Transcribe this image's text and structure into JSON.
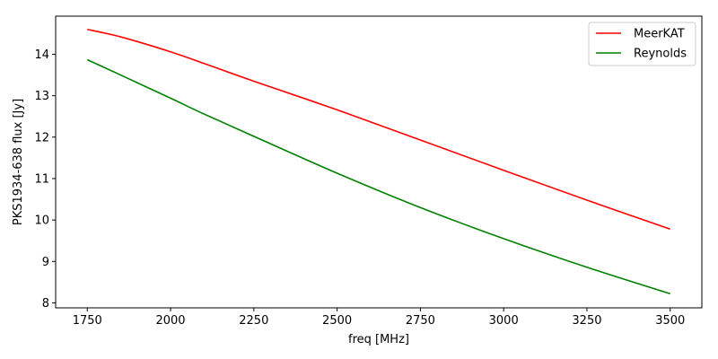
{
  "chart_data": {
    "type": "line",
    "title": "",
    "xlabel": "freq [MHz]",
    "ylabel": "PKS1934-638 flux [Jy]",
    "xlim": [
      1655,
      3595
    ],
    "ylim": [
      7.88,
      14.92
    ],
    "xticks": [
      1750,
      2000,
      2250,
      2500,
      2750,
      3000,
      3250,
      3500
    ],
    "yticks": [
      8,
      9,
      10,
      11,
      12,
      13,
      14
    ],
    "grid": false,
    "legend_position": "top-right",
    "series": [
      {
        "name": "MeerKAT",
        "color": "#ff0000",
        "x": [
          1750,
          1850,
          2000,
          2100,
          2250,
          2500,
          2750,
          3000,
          3250,
          3500
        ],
        "y": [
          14.6,
          14.42,
          14.06,
          13.78,
          13.35,
          12.66,
          11.93,
          11.2,
          10.48,
          9.78
        ]
      },
      {
        "name": "Reynolds",
        "color": "#008000",
        "x": [
          1750,
          1850,
          2000,
          2100,
          2250,
          2500,
          2750,
          3000,
          3250,
          3500
        ],
        "y": [
          13.87,
          13.5,
          12.94,
          12.56,
          12.02,
          11.13,
          10.3,
          9.55,
          8.86,
          8.22
        ]
      }
    ]
  }
}
